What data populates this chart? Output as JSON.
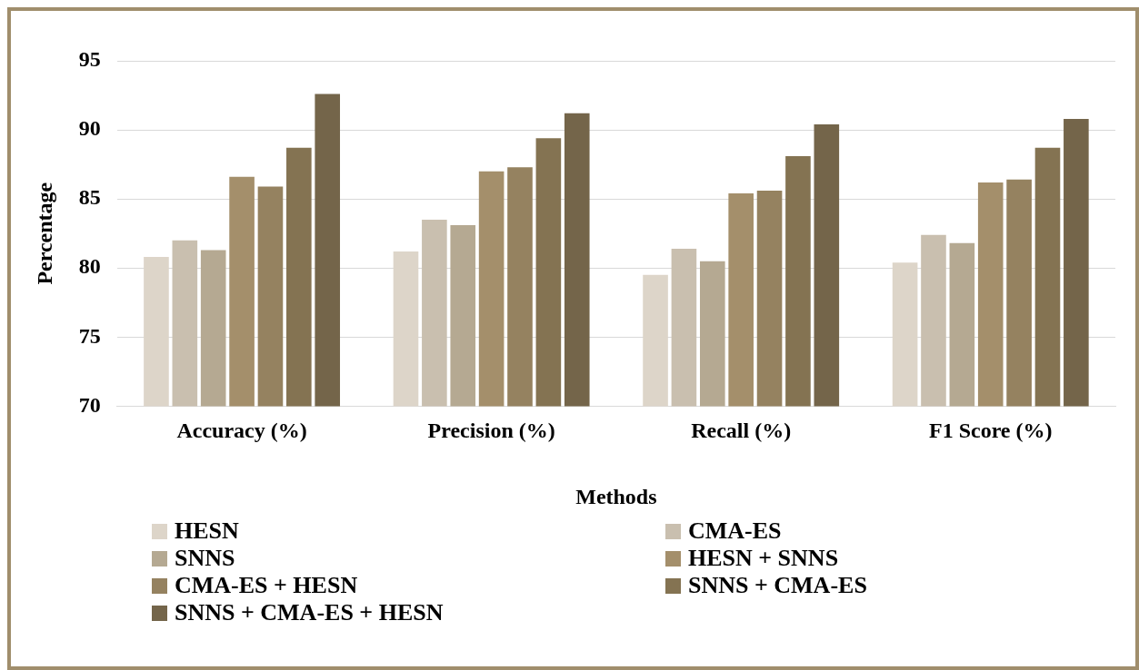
{
  "chart_data": {
    "type": "bar",
    "xlabel": "Methods",
    "ylabel": "Percentage",
    "categories": [
      "Accuracy (%)",
      "Precision (%)",
      "Recall (%)",
      "F1 Score (%)"
    ],
    "series": [
      {
        "name": "HESN",
        "color": "#ddd5c9",
        "values": [
          80.8,
          81.2,
          79.5,
          80.4
        ]
      },
      {
        "name": "CMA-ES",
        "color": "#c9bfaf",
        "values": [
          82.0,
          83.5,
          81.4,
          82.4
        ]
      },
      {
        "name": "SNNS",
        "color": "#b5a992",
        "values": [
          81.3,
          83.1,
          80.5,
          81.8
        ]
      },
      {
        "name": "HESN + SNNS",
        "color": "#a48f6b",
        "values": [
          86.6,
          87.0,
          85.4,
          86.2
        ]
      },
      {
        "name": "CMA-ES + HESN",
        "color": "#958260",
        "values": [
          85.9,
          87.3,
          85.6,
          86.4
        ]
      },
      {
        "name": "SNNS + CMA-ES",
        "color": "#847352",
        "values": [
          88.7,
          89.4,
          88.1,
          88.7
        ]
      },
      {
        "name": "SNNS + CMA-ES + HESN",
        "color": "#74654a",
        "values": [
          92.6,
          91.2,
          90.4,
          90.8
        ]
      }
    ],
    "ylim": [
      70,
      95
    ],
    "yticks": [
      70,
      75,
      80,
      85,
      90,
      95
    ],
    "grid": "y",
    "legend": "bottom"
  }
}
